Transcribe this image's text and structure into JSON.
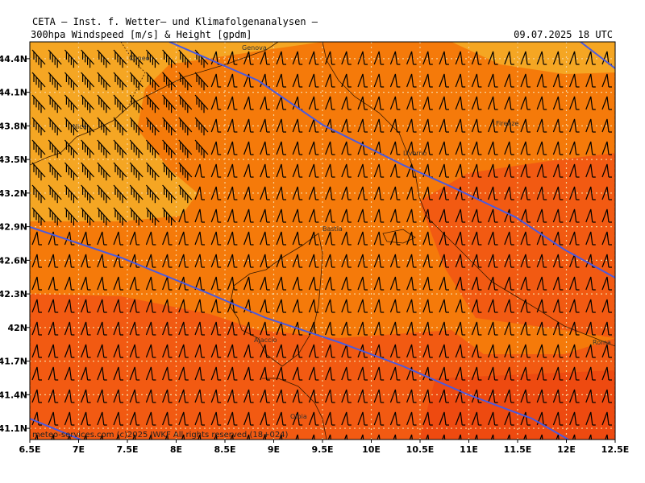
{
  "header": {
    "line1": "CETA – Inst. f. Wetter– und Klimafolgenanalysen –",
    "line2": "300hpa Windspeed [m/s] & Height [gpdm]",
    "valid_time": "09.07.2025 18 UTC"
  },
  "map": {
    "lon_range": [
      6.5,
      12.5
    ],
    "lat_range": [
      41.0,
      44.55
    ],
    "lon_ticks": [
      "6.5E",
      "7E",
      "7.5E",
      "8E",
      "8.5E",
      "9E",
      "9.5E",
      "10E",
      "10.5E",
      "11E",
      "11.5E",
      "12E",
      "12.5E"
    ],
    "lat_ticks": [
      "41.1N",
      "41.4N",
      "41.7N",
      "42N",
      "42.3N",
      "42.6N",
      "42.9N",
      "43.2N",
      "43.5N",
      "43.8N",
      "44.1N",
      "44.4N"
    ],
    "colors": {
      "wind_light": "#F5A623",
      "wind_mid": "#F57A0A",
      "wind_strong": "#F25A12",
      "wind_strongest": "#EE4A10",
      "contour": "#4A5AE0",
      "grid": "#F6D29A",
      "coast": "#3A1A00"
    },
    "cities": [
      "Cuneo",
      "Genova",
      "Firenze",
      "Nice",
      "Livorno",
      "Bastia",
      "Ajaccio",
      "Olbia",
      "Roma"
    ],
    "credit": "meteo-services.com  (c)2025 IWKF All rights reserved (18+024)"
  }
}
